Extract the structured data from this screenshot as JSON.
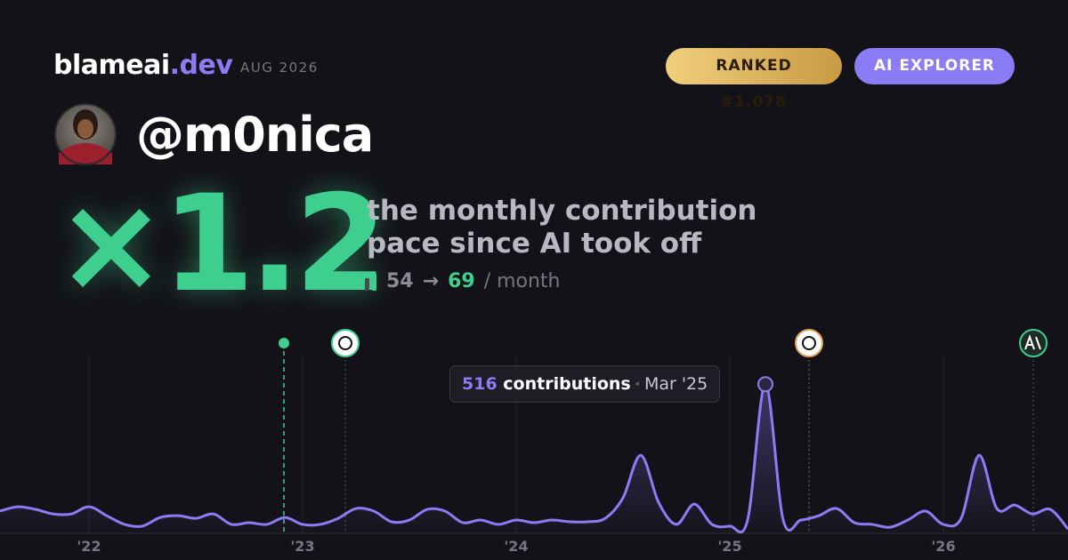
{
  "header": {
    "brand": "blameai",
    "tld": ".dev",
    "period": "AUG 2026",
    "rank_badge": "RANKED #1,078",
    "tier_badge": "AI EXPLORER"
  },
  "profile": {
    "handle": "@m0nica"
  },
  "headline": {
    "multiplier": "×1.2",
    "line1": "the monthly contribution",
    "line2": "pace since AI took off",
    "before": 54,
    "arrow": "→",
    "after": 69,
    "unit": "/ month"
  },
  "tooltip": {
    "label": "contributions",
    "date": "Mar '25"
  },
  "chart_data": {
    "type": "area",
    "color": "#8b7cf6",
    "categories": [
      null,
      null,
      null,
      null,
      null,
      "'22",
      null,
      null,
      null,
      null,
      null,
      null,
      null,
      null,
      null,
      null,
      null,
      "'23",
      null,
      null,
      null,
      null,
      null,
      null,
      null,
      null,
      null,
      null,
      null,
      "'24",
      null,
      null,
      null,
      null,
      null,
      null,
      null,
      null,
      null,
      null,
      null,
      "'25",
      null,
      null,
      null,
      null,
      null,
      null,
      null,
      null,
      null,
      null,
      null,
      "'26",
      null,
      null,
      null,
      null,
      null,
      null,
      null
    ],
    "values": [
      77,
      92,
      83,
      67,
      67,
      92,
      61,
      31,
      25,
      55,
      61,
      52,
      67,
      31,
      37,
      31,
      55,
      31,
      31,
      52,
      86,
      77,
      40,
      46,
      83,
      77,
      37,
      46,
      31,
      46,
      37,
      46,
      40,
      40,
      52,
      123,
      270,
      107,
      31,
      101,
      31,
      25,
      46,
      516,
      46,
      46,
      61,
      86,
      37,
      31,
      21,
      46,
      77,
      31,
      52,
      270,
      86,
      98,
      67,
      83,
      15
    ],
    "ylim": [
      0,
      560
    ]
  }
}
